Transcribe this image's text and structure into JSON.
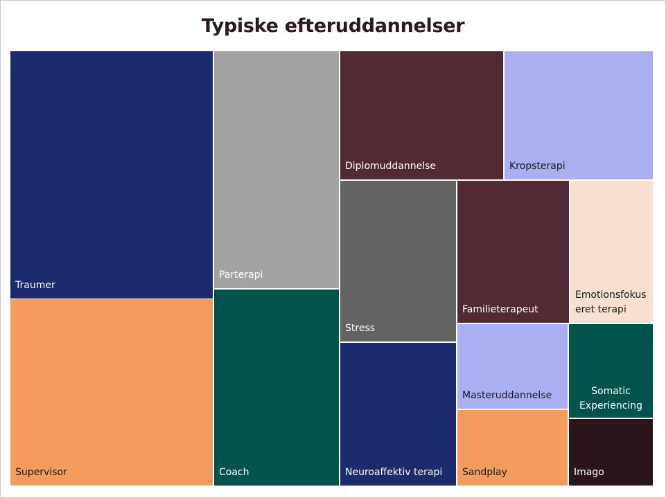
{
  "chart_data": {
    "type": "treemap",
    "title": "Typiske efteruddannelser",
    "items": [
      {
        "label": "Traumer",
        "color": "#1b2b6e",
        "text_color": "#ffffff"
      },
      {
        "label": "Supervisor",
        "color": "#f49c5e",
        "text_color": "#1a1a1a"
      },
      {
        "label": "Parterapi",
        "color": "#a3a3a3",
        "text_color": "#ffffff"
      },
      {
        "label": "Coach",
        "color": "#00544c",
        "text_color": "#ffffff"
      },
      {
        "label": "Diplomuddannelse",
        "color": "#522a33",
        "text_color": "#ffffff"
      },
      {
        "label": "Kropsterapi",
        "color": "#abaef0",
        "text_color": "#1a1a1a"
      },
      {
        "label": "Stress",
        "color": "#636363",
        "text_color": "#ffffff"
      },
      {
        "label": "Neuroaffektiv terapi",
        "color": "#1b2b6e",
        "text_color": "#ffffff"
      },
      {
        "label": "Familieterapeut",
        "color": "#522a33",
        "text_color": "#ffffff"
      },
      {
        "label": "Emotionsfokus\neret terapi",
        "color": "#f8dfd0",
        "text_color": "#1a1a1a"
      },
      {
        "label": "Masteruddannelse",
        "color": "#abaef0",
        "text_color": "#1a1a1a"
      },
      {
        "label": "Somatic\nExperiencing",
        "color": "#00544c",
        "text_color": "#ffffff"
      },
      {
        "label": "Sandplay",
        "color": "#f49c5e",
        "text_color": "#1a1a1a"
      },
      {
        "label": "Imago",
        "color": "#2b151c",
        "text_color": "#ffffff"
      }
    ]
  }
}
